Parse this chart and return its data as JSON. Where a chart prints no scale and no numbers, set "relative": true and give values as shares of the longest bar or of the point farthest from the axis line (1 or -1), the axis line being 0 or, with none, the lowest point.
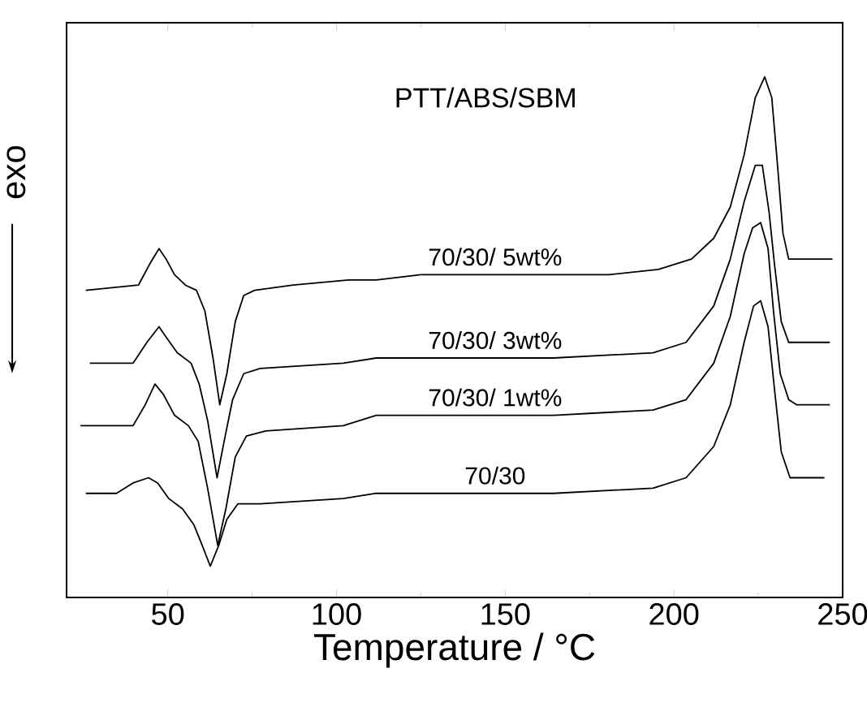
{
  "chart_data": {
    "type": "line",
    "relative": true,
    "xlabel": "Temperature / °C",
    "ylabel": "exo",
    "xlim": [
      20,
      250
    ],
    "xticks": [
      50,
      100,
      150,
      200,
      250
    ],
    "tick_labels": "x",
    "line_style": "solid",
    "marker": "none",
    "annotations": [
      "PTT/ABS/SBM"
    ],
    "series": [
      {
        "name": "70/30/ 5wt%",
        "color": "#000000",
        "x": [
          25.7,
          41.3,
          44.6,
          47.4,
          49.5,
          52.0,
          55.2,
          58.5,
          61.0,
          63.4,
          65.4,
          67.5,
          70.0,
          72.5,
          75.7,
          87.2,
          103.6,
          111.8,
          124.9,
          147.9,
          164.3,
          180.7,
          195.4,
          205.2,
          211.8,
          216.7,
          220.8,
          224.1,
          226.9,
          229.0,
          230.7,
          232.3,
          234.0,
          236.4,
          247.0
        ],
        "values": [
          0.59,
          0.6,
          0.64,
          0.67,
          0.65,
          0.62,
          0.6,
          0.59,
          0.55,
          0.46,
          0.37,
          0.43,
          0.53,
          0.58,
          0.59,
          0.6,
          0.61,
          0.61,
          0.62,
          0.62,
          0.62,
          0.62,
          0.63,
          0.65,
          0.69,
          0.75,
          0.85,
          0.96,
          1,
          0.96,
          0.83,
          0.7,
          0.65,
          0.65,
          0.65
        ]
      },
      {
        "name": "70/30/ 3wt%",
        "color": "#000000",
        "x": [
          26.9,
          39.7,
          43.8,
          47.4,
          49.5,
          52.8,
          56.9,
          59.3,
          61.8,
          64.6,
          66.7,
          69.2,
          72.5,
          77.4,
          102.0,
          111.8,
          131.5,
          164.3,
          193.8,
          203.6,
          211.8,
          216.7,
          220.8,
          224.1,
          226.2,
          228.2,
          229.8,
          231.8,
          234.0,
          236.4,
          246.2
        ],
        "values": [
          0.45,
          0.45,
          0.49,
          0.52,
          0.5,
          0.47,
          0.45,
          0.41,
          0.34,
          0.23,
          0.3,
          0.38,
          0.43,
          0.44,
          0.45,
          0.46,
          0.46,
          0.46,
          0.47,
          0.49,
          0.56,
          0.65,
          0.76,
          0.83,
          0.83,
          0.74,
          0.64,
          0.53,
          0.49,
          0.49,
          0.49
        ]
      },
      {
        "name": "70/30/ 1wt%",
        "color": "#000000",
        "x": [
          24.1,
          39.7,
          43.3,
          46.2,
          48.7,
          52.0,
          56.1,
          59.0,
          61.8,
          64.8,
          67.2,
          70.0,
          73.3,
          79.0,
          102.0,
          111.8,
          131.5,
          164.3,
          193.8,
          203.6,
          211.8,
          216.7,
          220.8,
          223.3,
          225.7,
          227.9,
          229.5,
          231.5,
          234.0,
          236.4,
          246.2
        ],
        "values": [
          0.33,
          0.33,
          0.37,
          0.41,
          0.39,
          0.35,
          0.33,
          0.3,
          0.21,
          0.1,
          0.17,
          0.27,
          0.31,
          0.32,
          0.33,
          0.35,
          0.35,
          0.35,
          0.36,
          0.38,
          0.45,
          0.54,
          0.66,
          0.71,
          0.72,
          0.67,
          0.55,
          0.43,
          0.38,
          0.37,
          0.37
        ]
      },
      {
        "name": "70/30",
        "color": "#000000",
        "x": [
          25.7,
          34.8,
          39.7,
          44.3,
          47.0,
          50.3,
          54.4,
          57.7,
          60.2,
          62.6,
          65.1,
          67.5,
          70.8,
          77.4,
          102.0,
          111.8,
          131.5,
          164.3,
          193.8,
          203.6,
          211.8,
          216.7,
          220.8,
          223.6,
          225.7,
          227.9,
          229.8,
          231.8,
          234.4,
          236.4,
          244.6
        ],
        "values": [
          0.2,
          0.2,
          0.22,
          0.23,
          0.22,
          0.19,
          0.17,
          0.14,
          0.1,
          0.06,
          0.1,
          0.15,
          0.18,
          0.18,
          0.19,
          0.2,
          0.2,
          0.2,
          0.21,
          0.23,
          0.29,
          0.37,
          0.49,
          0.56,
          0.57,
          0.52,
          0.4,
          0.28,
          0.23,
          0.23,
          0.23
        ]
      }
    ]
  }
}
